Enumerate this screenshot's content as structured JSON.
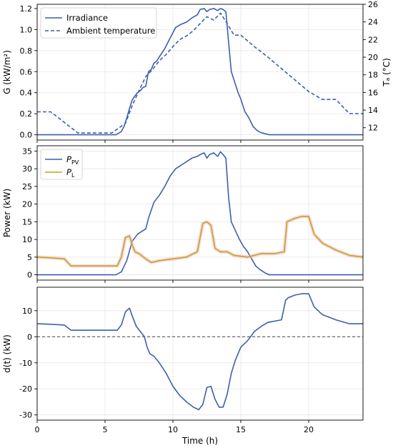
{
  "colors": {
    "blue": "#3d5fad",
    "gold": "#c4a41a",
    "pink": "#f2b8c8",
    "zero_line": "#444444"
  },
  "chart_data": [
    {
      "type": "line",
      "title": "",
      "xlabel": "",
      "ylabel": "G (kW/m²)",
      "y2label": "Tₐ (°C)",
      "xlim": [
        0,
        24
      ],
      "ylim": [
        -0.05,
        1.24
      ],
      "y2lim": [
        10.6,
        26.0
      ],
      "xticks": [
        0,
        5,
        10,
        15,
        20
      ],
      "yticks": [
        0.0,
        0.2,
        0.4,
        0.6,
        0.8,
        1.0,
        1.2
      ],
      "y2ticks": [
        12,
        14,
        16,
        18,
        20,
        22,
        24,
        26
      ],
      "legend": "top-left",
      "grid": true,
      "series": [
        {
          "name": "Irradiance",
          "axis": "left",
          "style": "solid",
          "color": "#3d5fad",
          "x": [
            0,
            5.8,
            6.2,
            6.4,
            6.6,
            6.8,
            7.0,
            7.2,
            7.4,
            7.6,
            7.8,
            8.0,
            8.2,
            8.4,
            8.6,
            8.8,
            9.0,
            9.4,
            9.8,
            10.2,
            10.6,
            11.0,
            11.4,
            11.8,
            12.0,
            12.3,
            12.5,
            12.7,
            13.0,
            13.3,
            13.5,
            13.7,
            13.9,
            14.1,
            14.3,
            14.5,
            14.8,
            15.0,
            15.3,
            15.6,
            15.9,
            16.2,
            16.5,
            16.8,
            17.1,
            24
          ],
          "y": [
            0.0,
            0.0,
            0.03,
            0.08,
            0.16,
            0.25,
            0.33,
            0.37,
            0.4,
            0.42,
            0.45,
            0.46,
            0.6,
            0.62,
            0.68,
            0.7,
            0.74,
            0.82,
            0.92,
            1.02,
            1.05,
            1.07,
            1.11,
            1.14,
            1.19,
            1.2,
            1.17,
            1.19,
            1.2,
            1.18,
            1.2,
            1.19,
            1.17,
            0.88,
            0.6,
            0.52,
            0.4,
            0.34,
            0.22,
            0.16,
            0.08,
            0.04,
            0.02,
            0.01,
            0.0,
            0.0
          ]
        },
        {
          "name": "Ambient temperature",
          "axis": "right",
          "style": "dashed",
          "color": "#3d5fad",
          "x": [
            0,
            1.0,
            2.0,
            3.0,
            5.5,
            6.5,
            7.0,
            7.5,
            8.0,
            8.5,
            9.0,
            9.5,
            10.0,
            10.5,
            11.0,
            11.5,
            12.0,
            12.5,
            13.0,
            13.5,
            14.0,
            14.5,
            15.0,
            16.0,
            17.0,
            18.0,
            19.0,
            20.0,
            21.0,
            22.0,
            23.0,
            24
          ],
          "y": [
            13.8,
            13.8,
            12.6,
            11.4,
            11.4,
            12.5,
            14.5,
            16.2,
            17.8,
            18.6,
            19.6,
            20.3,
            21.2,
            22.0,
            22.4,
            23.0,
            23.8,
            24.6,
            24.2,
            25.0,
            23.8,
            22.5,
            22.5,
            21.2,
            20.0,
            18.7,
            17.4,
            16.1,
            15.2,
            15.2,
            13.6,
            13.6
          ]
        }
      ]
    },
    {
      "type": "line",
      "title": "",
      "xlabel": "",
      "ylabel": "Power (kW)",
      "xlim": [
        0,
        24
      ],
      "ylim": [
        -1.5,
        36.5
      ],
      "xticks": [
        0,
        5,
        10,
        15,
        20
      ],
      "yticks": [
        0,
        5,
        10,
        15,
        20,
        25,
        30,
        35
      ],
      "legend": "top-left",
      "grid": true,
      "series": [
        {
          "name": "P_PV",
          "color": "#3d5fad",
          "x": [
            0,
            5.8,
            6.2,
            6.6,
            7.0,
            7.4,
            7.8,
            8.0,
            8.2,
            8.6,
            9.0,
            9.4,
            9.8,
            10.2,
            10.6,
            11.0,
            11.4,
            11.8,
            12.0,
            12.3,
            12.5,
            12.7,
            13.0,
            13.3,
            13.5,
            13.7,
            13.9,
            14.1,
            14.3,
            14.6,
            14.9,
            15.2,
            15.5,
            15.8,
            16.1,
            16.4,
            16.8,
            17.1,
            24
          ],
          "y": [
            0.0,
            0.0,
            0.8,
            4.0,
            9.5,
            11.5,
            12.5,
            13.0,
            16.0,
            20.5,
            22.5,
            25.0,
            28.0,
            30.0,
            31.0,
            32.0,
            33.0,
            33.5,
            34.0,
            34.5,
            33.0,
            34.0,
            34.5,
            33.5,
            34.8,
            34.0,
            33.0,
            22.0,
            15.0,
            12.5,
            10.0,
            8.0,
            6.5,
            4.5,
            2.5,
            1.5,
            0.5,
            0.0,
            0.0
          ]
        },
        {
          "name": "P_L",
          "color": "#c4a41a",
          "x": [
            0,
            1.0,
            2.0,
            2.5,
            5.9,
            6.2,
            6.5,
            6.8,
            7.0,
            7.2,
            7.5,
            8.0,
            8.4,
            9.0,
            10.0,
            11.0,
            11.8,
            12.2,
            12.5,
            12.8,
            13.1,
            13.5,
            14.0,
            14.5,
            15.5,
            16.5,
            17.5,
            18.2,
            18.4,
            19.0,
            19.5,
            20.0,
            20.4,
            21.0,
            22.0,
            23.0,
            24
          ],
          "y": [
            5.0,
            4.8,
            4.5,
            2.5,
            2.5,
            5.0,
            10.5,
            11.0,
            8.5,
            6.5,
            6.0,
            4.5,
            3.5,
            4.0,
            4.5,
            5.0,
            6.5,
            14.5,
            15.0,
            14.0,
            7.5,
            6.5,
            6.5,
            5.5,
            5.0,
            6.0,
            6.0,
            6.5,
            15.0,
            16.0,
            16.5,
            16.5,
            11.5,
            9.0,
            7.0,
            5.5,
            5.0
          ]
        }
      ]
    },
    {
      "type": "line",
      "title": "",
      "xlabel": "Time (h)",
      "ylabel": "d(t) (kW)",
      "xlim": [
        0,
        24
      ],
      "ylim": [
        -32,
        19
      ],
      "xticks": [
        0,
        5,
        10,
        15,
        20
      ],
      "yticks": [
        -30,
        -20,
        -10,
        0,
        10
      ],
      "legend": "none",
      "grid": true,
      "reference_line_y": 0,
      "series": [
        {
          "name": "",
          "color": "#3d5fad",
          "x": [
            0,
            1.0,
            2.0,
            2.5,
            5.9,
            6.2,
            6.5,
            6.8,
            7.0,
            7.3,
            7.6,
            7.9,
            8.1,
            8.3,
            8.6,
            9.0,
            9.5,
            10.0,
            10.5,
            11.0,
            11.5,
            11.9,
            12.2,
            12.5,
            12.8,
            13.1,
            13.4,
            13.7,
            14.0,
            14.3,
            14.6,
            15.0,
            15.5,
            16.0,
            16.5,
            17.0,
            17.5,
            18.0,
            18.3,
            18.5,
            19.0,
            19.5,
            20.0,
            20.4,
            21.0,
            22.0,
            23.0,
            24
          ],
          "y": [
            5.0,
            4.8,
            4.5,
            2.5,
            2.5,
            4.5,
            9.5,
            11.0,
            8.0,
            4.0,
            2.0,
            0.0,
            -4.0,
            -6.5,
            -7.5,
            -10.0,
            -14.0,
            -19.0,
            -22.5,
            -25.0,
            -27.0,
            -28.0,
            -26.0,
            -19.5,
            -19.0,
            -24.0,
            -27.0,
            -27.0,
            -22.0,
            -14.0,
            -9.0,
            -4.0,
            -1.5,
            2.0,
            4.0,
            5.5,
            6.0,
            6.5,
            14.0,
            15.0,
            16.0,
            16.5,
            16.5,
            11.5,
            8.5,
            6.5,
            5.0,
            5.0
          ]
        }
      ]
    }
  ]
}
